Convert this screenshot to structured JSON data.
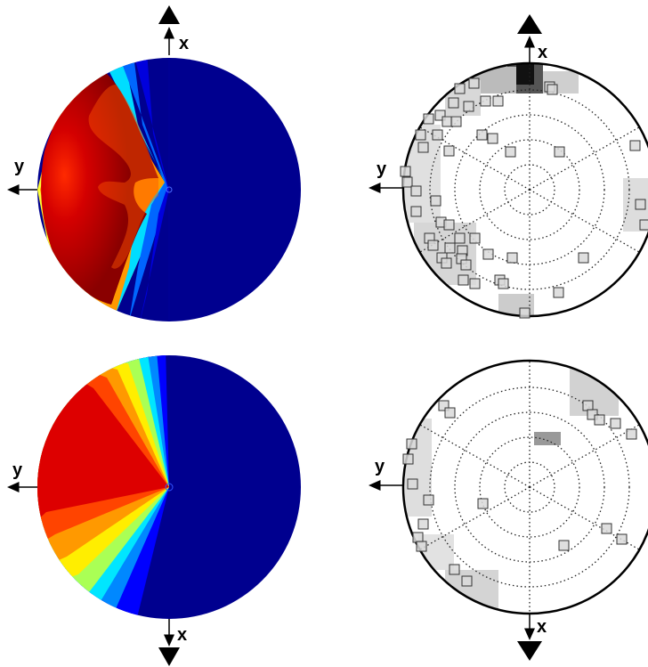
{
  "panels": [
    {
      "id": "top-left",
      "type": "color-polar-map",
      "labels": {
        "x": "x",
        "y": "y"
      }
    },
    {
      "id": "top-right",
      "type": "grayscale-polar-map-with-markers",
      "labels": {
        "x": "x",
        "y": "y"
      }
    },
    {
      "id": "bottom-left",
      "type": "color-polar-map",
      "labels": {
        "x": "x",
        "y": "y"
      }
    },
    {
      "id": "bottom-right",
      "type": "grayscale-polar-map-with-markers",
      "labels": {
        "x": "x",
        "y": "y"
      }
    }
  ],
  "colors": {
    "background_blue": "#00008f",
    "colormap": [
      "#00008f",
      "#0000ff",
      "#00ffff",
      "#ffff00",
      "#ff0000",
      "#800000"
    ],
    "marker_stroke": "#333333"
  }
}
